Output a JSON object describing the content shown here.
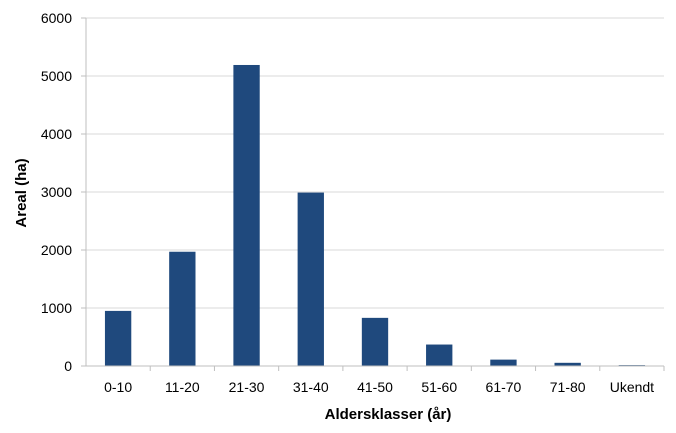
{
  "chart_data": {
    "type": "bar",
    "title": "",
    "xlabel": "Aldersklasser (år)",
    "ylabel": "Areal (ha)",
    "categories": [
      "0-10",
      "11-20",
      "21-30",
      "31-40",
      "41-50",
      "51-60",
      "61-70",
      "71-80",
      "Ukendt"
    ],
    "series": [
      {
        "values": [
          950,
          1970,
          5190,
          2990,
          830,
          370,
          110,
          55,
          15
        ]
      }
    ],
    "ylim": [
      0,
      6000
    ],
    "yticks": [
      0,
      1000,
      2000,
      3000,
      4000,
      5000,
      6000
    ],
    "grid": true,
    "legend": "none",
    "colors": {
      "bar": "#1f497d",
      "grid": "#d9d9d9",
      "axis": "#bfbfbf"
    }
  }
}
